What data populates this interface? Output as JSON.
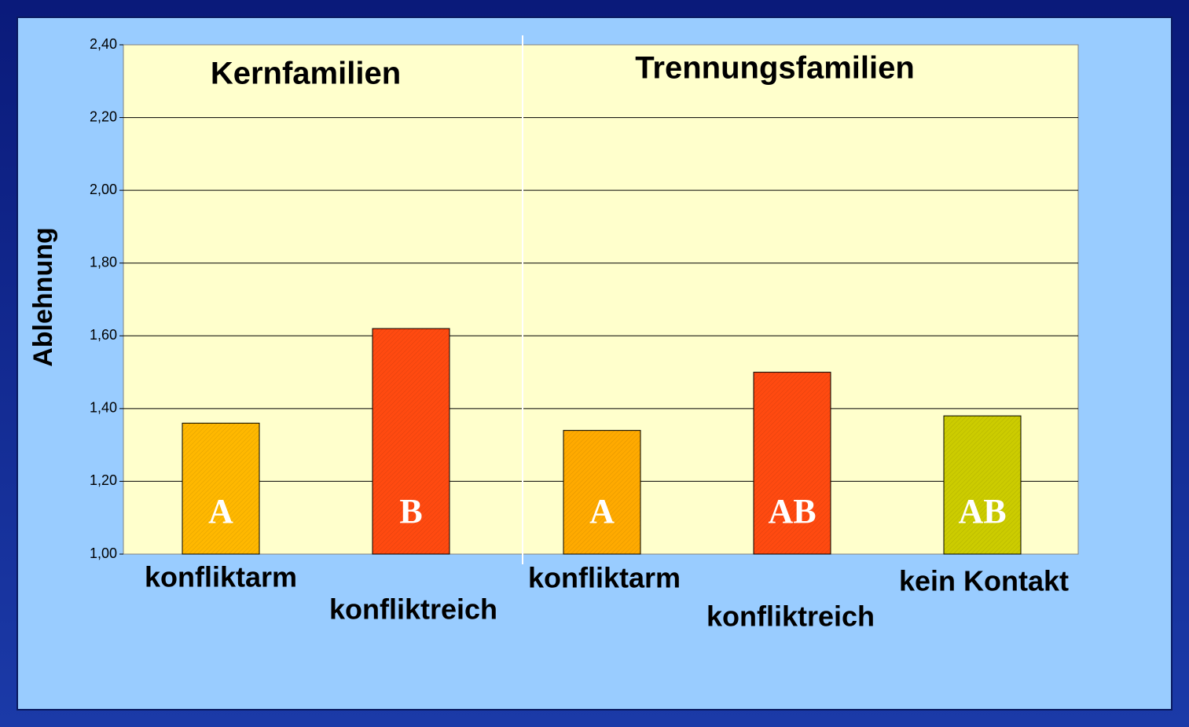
{
  "chart_data": {
    "type": "bar",
    "y_label": "Ablehnung",
    "groups": [
      "Kernfamilien",
      "Trennungsfamilien"
    ],
    "categories": [
      "konfliktarm",
      "konfliktreich",
      "konfliktarm",
      "konfliktreich",
      "kein Kontakt"
    ],
    "values": [
      1.36,
      1.62,
      1.34,
      1.5,
      1.38
    ],
    "labels": [
      "A",
      "B",
      "A",
      "AB",
      "AB"
    ],
    "colors": [
      "#ffb800",
      "#ff4a10",
      "#ffaa00",
      "#ff4a10",
      "#cccc00"
    ],
    "ylim": [
      1.0,
      2.4
    ],
    "yticks": [
      {
        "value": 1.0,
        "label": "1,00"
      },
      {
        "value": 1.2,
        "label": "1,20"
      },
      {
        "value": 1.4,
        "label": "1,40"
      },
      {
        "value": 1.6,
        "label": "1,60"
      },
      {
        "value": 1.8,
        "label": "1,80"
      },
      {
        "value": 2.0,
        "label": "2,00"
      },
      {
        "value": 2.2,
        "label": "2,20"
      },
      {
        "value": 2.4,
        "label": "2,40"
      }
    ],
    "grid": true
  }
}
